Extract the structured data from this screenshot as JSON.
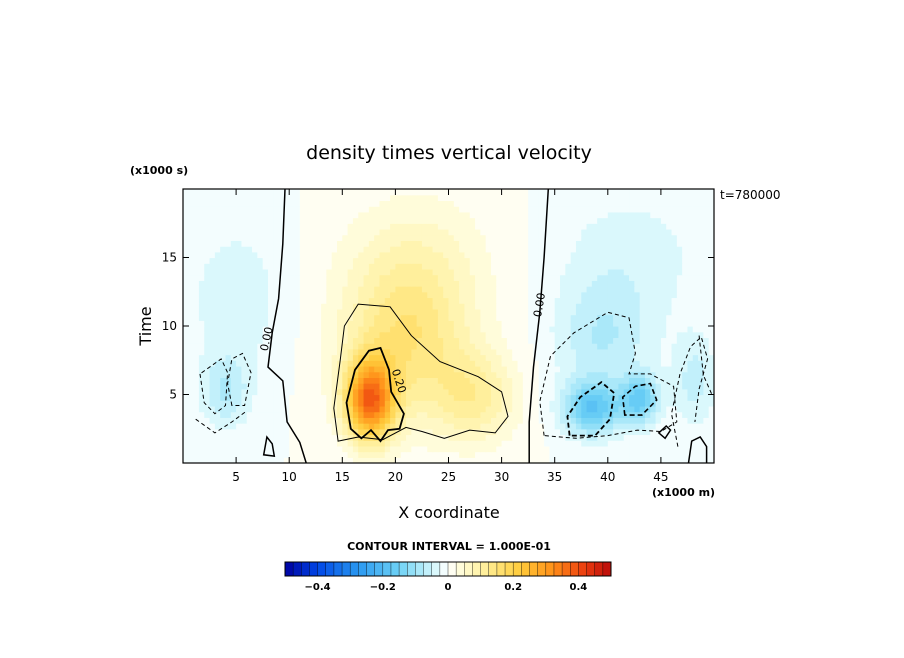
{
  "chart_data": {
    "type": "heatmap",
    "title": "density times vertical velocity",
    "xlabel": "X coordinate",
    "ylabel": "Time",
    "x_unit": "(x1000 m)",
    "y_unit": "(x1000 s)",
    "time_stamp": "t=780000",
    "xlim": [
      0,
      50
    ],
    "ylim": [
      0,
      20
    ],
    "x_ticks": [
      5,
      10,
      15,
      20,
      25,
      30,
      35,
      40,
      45
    ],
    "y_ticks": [
      5,
      10,
      15
    ],
    "contour_interval_label": "CONTOUR INTERVAL = 1.000E-01",
    "contour_interval": 0.1,
    "zero_line_label": "0.00",
    "peak_contour_label": "0.20",
    "colorbar": {
      "range": [
        -0.5,
        0.5
      ],
      "ticks": [
        -0.4,
        -0.2,
        0,
        0.2,
        0.4
      ],
      "tick_labels": [
        "−0.4",
        "−0.2",
        "0",
        "0.2",
        "0.4"
      ],
      "levels": 40
    },
    "features": [
      {
        "kind": "max",
        "x": 17.5,
        "y": 4.5,
        "value": 0.35
      },
      {
        "kind": "min",
        "x": 38.5,
        "y": 4.0,
        "value": -0.2
      },
      {
        "kind": "min",
        "x": 43.0,
        "y": 4.5,
        "value": -0.18
      },
      {
        "kind": "min",
        "x": 4.0,
        "y": 5.0,
        "value": -0.08
      }
    ]
  }
}
